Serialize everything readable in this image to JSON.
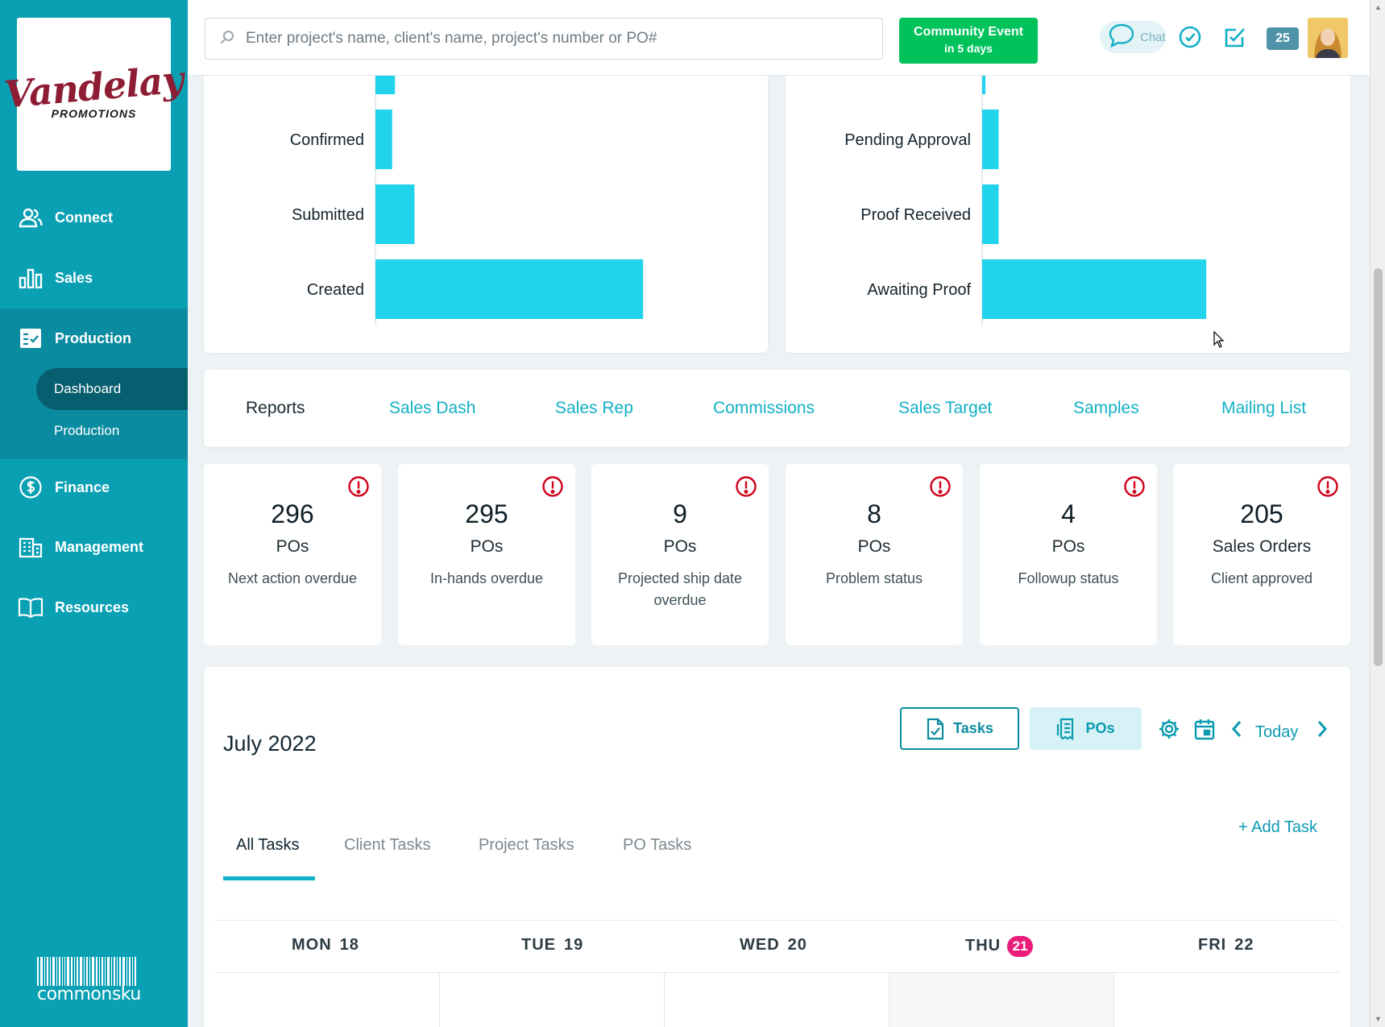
{
  "brand": {
    "logo_main": "Vandelay",
    "logo_sub": "PROMOTIONS",
    "footer_logo": "commonsku"
  },
  "sidebar": {
    "items": [
      {
        "label": "Connect",
        "icon": "users-icon"
      },
      {
        "label": "Sales",
        "icon": "bar-chart-icon"
      },
      {
        "label": "Production",
        "icon": "checklist-icon"
      },
      {
        "label": "Finance",
        "icon": "dollar-icon"
      },
      {
        "label": "Management",
        "icon": "building-icon"
      },
      {
        "label": "Resources",
        "icon": "book-icon"
      }
    ],
    "sub_items": [
      {
        "label": "Dashboard",
        "active": true
      },
      {
        "label": "Production",
        "active": false
      }
    ]
  },
  "topbar": {
    "search_placeholder": "Enter project's name, client's name, project's number or PO#",
    "event_line1": "Community Event",
    "event_line2": "in 5 days",
    "chat_label": "Chat",
    "notification_count": "25"
  },
  "colors": {
    "sidebar": "#0aa0b4",
    "accent": "#12b0c6",
    "bar": "#22d3ec",
    "event_green": "#00c25b",
    "alert_red": "#d0021b",
    "today_pink": "#ea1e7a"
  },
  "chart_data": [
    {
      "type": "bar",
      "orientation": "horizontal",
      "title": "",
      "categories": [
        "Confirmed",
        "Submitted",
        "Created"
      ],
      "values": [
        6,
        14,
        96
      ],
      "partial_top_value": 7,
      "xlim": [
        0,
        100
      ]
    },
    {
      "type": "bar",
      "orientation": "horizontal",
      "title": "",
      "categories": [
        "Pending Approval",
        "Proof Received",
        "Awaiting Proof"
      ],
      "values": [
        5,
        5,
        68
      ],
      "partial_top_value": 1,
      "xlim": [
        0,
        100
      ]
    }
  ],
  "reports": {
    "tabs": [
      "Reports",
      "Sales Dash",
      "Sales Rep",
      "Commissions",
      "Sales Target",
      "Samples",
      "Mailing List"
    ]
  },
  "stats": [
    {
      "number": "296",
      "unit": "POs",
      "desc": "Next action overdue"
    },
    {
      "number": "295",
      "unit": "POs",
      "desc": "In-hands overdue"
    },
    {
      "number": "9",
      "unit": "POs",
      "desc": "Projected ship date overdue"
    },
    {
      "number": "8",
      "unit": "POs",
      "desc": "Problem status"
    },
    {
      "number": "4",
      "unit": "POs",
      "desc": "Followup status"
    },
    {
      "number": "205",
      "unit": "Sales Orders",
      "desc": "Client approved"
    }
  ],
  "calendar": {
    "title": "July 2022",
    "tasks_button": "Tasks",
    "pos_button": "POs",
    "today_label": "Today",
    "add_task": "+ Add Task",
    "task_tabs": [
      "All Tasks",
      "Client Tasks",
      "Project Tasks",
      "PO Tasks"
    ],
    "days": [
      {
        "name": "MON",
        "num": "18"
      },
      {
        "name": "TUE",
        "num": "19"
      },
      {
        "name": "WED",
        "num": "20"
      },
      {
        "name": "THU",
        "num": "21",
        "today": true
      },
      {
        "name": "FRI",
        "num": "22"
      }
    ]
  }
}
